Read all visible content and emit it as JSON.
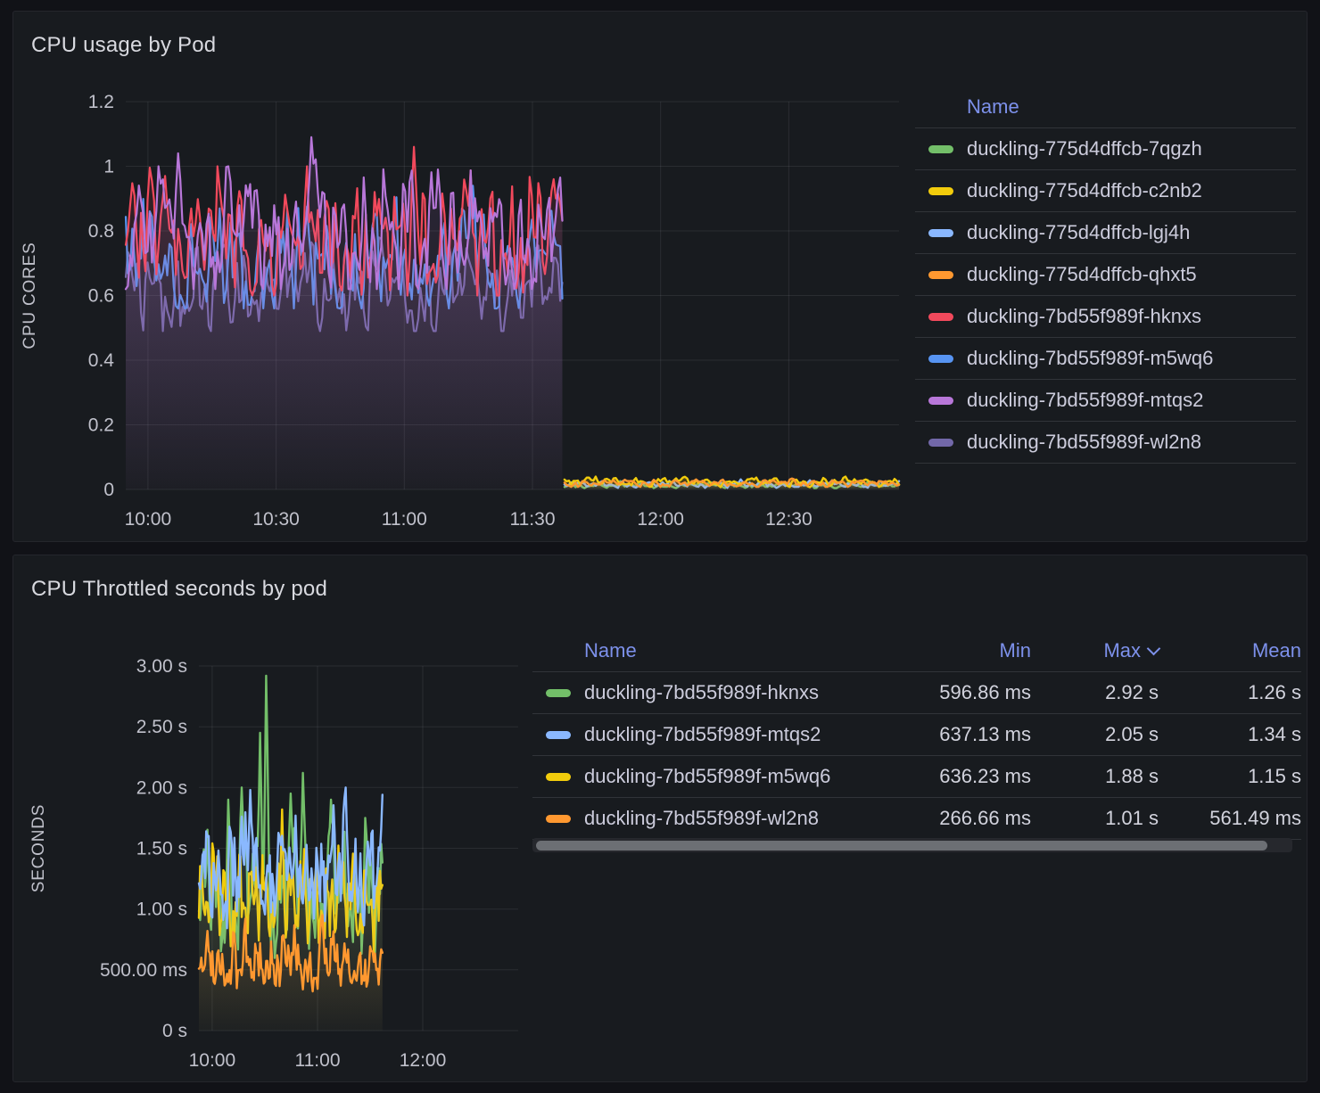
{
  "panels": [
    {
      "title": "CPU usage by Pod",
      "legend": {
        "header": "Name",
        "items": [
          {
            "label": "duckling-775d4dffcb-7qgzh",
            "color": "#73BF69"
          },
          {
            "label": "duckling-775d4dffcb-c2nb2",
            "color": "#F2CC0C"
          },
          {
            "label": "duckling-775d4dffcb-lgj4h",
            "color": "#8AB8FF"
          },
          {
            "label": "duckling-775d4dffcb-qhxt5",
            "color": "#FF9830"
          },
          {
            "label": "duckling-7bd55f989f-hknxs",
            "color": "#F2495C"
          },
          {
            "label": "duckling-7bd55f989f-m5wq6",
            "color": "#5794F2"
          },
          {
            "label": "duckling-7bd55f989f-mtqs2",
            "color": "#B877D9"
          },
          {
            "label": "duckling-7bd55f989f-wl2n8",
            "color": "#7268A9"
          }
        ]
      },
      "chart_data": {
        "type": "line",
        "title": "CPU usage by Pod",
        "xlabel": "",
        "ylabel": "CPU CORES",
        "ylim": [
          0,
          1.2
        ],
        "xlim_minutes": [
          594.8,
          775.8
        ],
        "grid": true,
        "legend_position": "right",
        "yticks": [
          {
            "v": 0,
            "label": "0"
          },
          {
            "v": 0.2,
            "label": "0.2"
          },
          {
            "v": 0.4,
            "label": "0.4"
          },
          {
            "v": 0.6,
            "label": "0.6"
          },
          {
            "v": 0.8,
            "label": "0.8"
          },
          {
            "v": 1,
            "label": "1"
          },
          {
            "v": 1.2,
            "label": "1.2"
          }
        ],
        "xticks": [
          {
            "t": 600,
            "label": "10:00"
          },
          {
            "t": 630,
            "label": "10:30"
          },
          {
            "t": 660,
            "label": "11:00"
          },
          {
            "t": 690,
            "label": "11:30"
          },
          {
            "t": 720,
            "label": "12:00"
          },
          {
            "t": 750,
            "label": "12:30"
          }
        ],
        "series": [
          {
            "name": "duckling-7bd55f989f-wl2n8",
            "color": "#7268A9",
            "seed": 7,
            "points": 200,
            "t0": 594.8,
            "t1": 697,
            "base": 0.615,
            "amp": 0.13,
            "min": 0.49,
            "max": 0.78,
            "fill": 0.13,
            "w": 2.2,
            "spikes": []
          },
          {
            "name": "duckling-7bd55f989f-m5wq6",
            "color": "#5794F2",
            "seed": 12,
            "points": 200,
            "t0": 594.8,
            "t1": 697,
            "base": 0.705,
            "amp": 0.15,
            "min": 0.56,
            "max": 0.93,
            "fill": 0.13,
            "w": 2.2,
            "spikes": [
              {
                "t": 676,
                "v": 0.94
              }
            ]
          },
          {
            "name": "duckling-7bd55f989f-hknxs",
            "color": "#F2495C",
            "seed": 23,
            "points": 200,
            "t0": 594.8,
            "t1": 697,
            "base": 0.775,
            "amp": 0.17,
            "min": 0.6,
            "max": 1.0,
            "fill": 0.13,
            "w": 2.2,
            "spikes": [
              {
                "t": 604,
                "v": 0.97
              },
              {
                "t": 662,
                "v": 1.06
              },
              {
                "t": 695,
                "v": 0.96
              }
            ]
          },
          {
            "name": "duckling-7bd55f989f-mtqs2",
            "color": "#B877D9",
            "seed": 31,
            "points": 200,
            "t0": 594.8,
            "t1": 697,
            "base": 0.785,
            "amp": 0.17,
            "min": 0.62,
            "max": 1.0,
            "fill": 0.13,
            "w": 2.2,
            "spikes": [
              {
                "t": 607,
                "v": 1.04
              },
              {
                "t": 638,
                "v": 1.09
              },
              {
                "t": 668,
                "v": 0.99
              },
              {
                "t": 696,
                "v": 0.93
              }
            ]
          },
          {
            "name": "duckling-775d4dffcb-7qgzh",
            "color": "#73BF69",
            "seed": 41,
            "points": 150,
            "t0": 697.5,
            "t1": 775.8,
            "base": 0.013,
            "amp": 0.008,
            "min": 0.004,
            "max": 0.03,
            "fill": 0.3,
            "w": 2.4,
            "spikes": []
          },
          {
            "name": "duckling-775d4dffcb-lgj4h",
            "color": "#8AB8FF",
            "seed": 47,
            "points": 150,
            "t0": 697.5,
            "t1": 775.8,
            "base": 0.016,
            "amp": 0.009,
            "min": 0.005,
            "max": 0.034,
            "fill": 0.3,
            "w": 2.4,
            "spikes": []
          },
          {
            "name": "duckling-775d4dffcb-c2nb2",
            "color": "#F2CC0C",
            "seed": 53,
            "points": 150,
            "t0": 697.5,
            "t1": 775.8,
            "base": 0.024,
            "amp": 0.012,
            "min": 0.007,
            "max": 0.05,
            "fill": 0.3,
            "w": 2.4,
            "spikes": []
          },
          {
            "name": "duckling-775d4dffcb-qhxt5",
            "color": "#FF9830",
            "seed": 59,
            "points": 150,
            "t0": 697.5,
            "t1": 775.8,
            "base": 0.02,
            "amp": 0.01,
            "min": 0.008,
            "max": 0.04,
            "fill": 0.3,
            "w": 2.4,
            "spikes": []
          }
        ]
      }
    },
    {
      "title": "CPU Throttled seconds by pod",
      "table": {
        "headers": [
          {
            "label": "Name",
            "sorted": false
          },
          {
            "label": "Min",
            "sorted": false
          },
          {
            "label": "Max",
            "sorted": "desc"
          },
          {
            "label": "Mean",
            "sorted": false
          }
        ],
        "rows": [
          {
            "name": "duckling-7bd55f989f-hknxs",
            "color": "#73BF69",
            "min": "596.86 ms",
            "max": "2.92 s",
            "mean": "1.26 s"
          },
          {
            "name": "duckling-7bd55f989f-mtqs2",
            "color": "#8AB8FF",
            "min": "637.13 ms",
            "max": "2.05 s",
            "mean": "1.34 s"
          },
          {
            "name": "duckling-7bd55f989f-m5wq6",
            "color": "#F2CC0C",
            "min": "636.23 ms",
            "max": "1.88 s",
            "mean": "1.15 s"
          },
          {
            "name": "duckling-7bd55f989f-wl2n8",
            "color": "#FF9830",
            "min": "266.66 ms",
            "max": "1.01 s",
            "mean": "561.49 ms"
          }
        ]
      },
      "chart_data": {
        "type": "line",
        "title": "CPU Throttled seconds by pod",
        "xlabel": "",
        "ylabel": "SECONDS",
        "ylim": [
          0,
          3
        ],
        "xlim_minutes": [
          592.4,
          774.4
        ],
        "grid": true,
        "legend_position": "right-table",
        "yticks": [
          {
            "v": 0,
            "label": "0 s"
          },
          {
            "v": 0.5,
            "label": "500.00 ms"
          },
          {
            "v": 1,
            "label": "1.00 s"
          },
          {
            "v": 1.5,
            "label": "1.50 s"
          },
          {
            "v": 2,
            "label": "2.00 s"
          },
          {
            "v": 2.5,
            "label": "2.50 s"
          },
          {
            "v": 3,
            "label": "3.00 s"
          }
        ],
        "xticks": [
          {
            "t": 600,
            "label": "10:00"
          },
          {
            "t": 660,
            "label": "11:00"
          },
          {
            "t": 720,
            "label": "12:00"
          }
        ],
        "series": [
          {
            "name": "duckling-7bd55f989f-hknxs",
            "color": "#73BF69",
            "seed": 71,
            "points": 150,
            "t0": 592.4,
            "t1": 697,
            "base": 1.1,
            "amp": 0.42,
            "min": 0.597,
            "max": 2.2,
            "fill": 0.12,
            "w": 2.4,
            "stats": {
              "min_s": 0.59686,
              "max_s": 2.92,
              "mean_s": 1.26
            },
            "spikes": [
              {
                "t": 609,
                "v": 1.9
              },
              {
                "t": 617,
                "v": 2.0
              },
              {
                "t": 627,
                "v": 2.45
              },
              {
                "t": 631,
                "v": 2.92
              },
              {
                "t": 645,
                "v": 1.95
              },
              {
                "t": 652,
                "v": 2.12
              },
              {
                "t": 668,
                "v": 1.9
              },
              {
                "t": 687,
                "v": 1.75
              }
            ]
          },
          {
            "name": "duckling-7bd55f989f-m5wq6",
            "color": "#F2CC0C",
            "seed": 79,
            "points": 150,
            "t0": 592.4,
            "t1": 697,
            "base": 1.08,
            "amp": 0.34,
            "min": 0.636,
            "max": 1.88,
            "fill": 0.12,
            "w": 2.4,
            "stats": {
              "min_s": 0.63623,
              "max_s": 1.88,
              "mean_s": 1.15
            },
            "spikes": [
              {
                "t": 640,
                "v": 1.82
              }
            ]
          },
          {
            "name": "duckling-7bd55f989f-mtqs2",
            "color": "#8AB8FF",
            "seed": 83,
            "points": 150,
            "t0": 592.4,
            "t1": 697,
            "base": 1.3,
            "amp": 0.38,
            "min": 0.637,
            "max": 2.05,
            "fill": 0.12,
            "w": 2.4,
            "stats": {
              "min_s": 0.63713,
              "max_s": 2.05,
              "mean_s": 1.34
            },
            "spikes": [
              {
                "t": 622,
                "v": 1.98
              },
              {
                "t": 676,
                "v": 2.0
              }
            ]
          },
          {
            "name": "duckling-7bd55f989f-wl2n8",
            "color": "#FF9830",
            "seed": 97,
            "points": 150,
            "t0": 592.4,
            "t1": 697,
            "base": 0.55,
            "amp": 0.22,
            "min": 0.267,
            "max": 1.01,
            "fill": 0.12,
            "w": 2.4,
            "stats": {
              "min_s": 0.26666,
              "max_s": 1.01,
              "mean_s": 0.56149
            },
            "spikes": [
              {
                "t": 663,
                "v": 0.95
              }
            ]
          }
        ]
      }
    }
  ]
}
